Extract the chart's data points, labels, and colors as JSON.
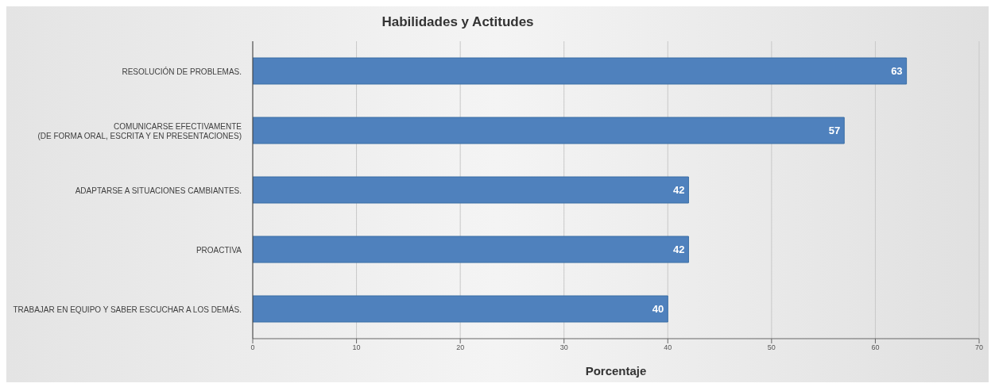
{
  "chart_data": {
    "type": "bar",
    "orientation": "horizontal",
    "title": "Habilidades y Actitudes",
    "xlabel": "Porcentaje",
    "categories": [
      "RESOLUCIÓN DE PROBLEMAS.",
      "COMUNICARSE EFECTIVAMENTE\n(DE FORMA ORAL, ESCRITA Y EN PRESENTACIONES)",
      "ADAPTARSE A SITUACIONES CAMBIANTES.",
      "PROACTIVA",
      "TRABAJAR EN EQUIPO Y SABER ESCUCHAR A LOS DEMÁS."
    ],
    "values": [
      63,
      57,
      42,
      42,
      40
    ],
    "color": "#4f81bd",
    "xlim": [
      0,
      70
    ],
    "xticks": [
      0,
      10,
      20,
      30,
      40,
      50,
      60,
      70
    ],
    "grid": "x",
    "data_labels": true
  }
}
